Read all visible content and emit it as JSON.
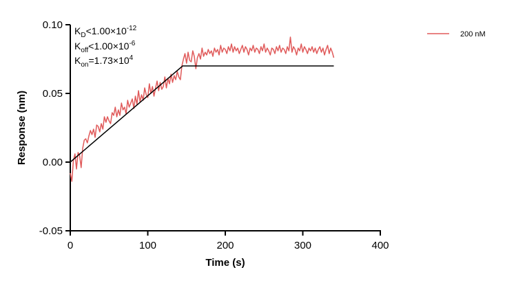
{
  "chart_data": {
    "type": "line",
    "title": "",
    "xlabel": "Time (s)",
    "ylabel": "Response (nm)",
    "xlim": [
      0,
      400
    ],
    "ylim": [
      -0.05,
      0.1
    ],
    "x_ticks": [
      0,
      100,
      200,
      300,
      400
    ],
    "x_tick_labels": [
      "0",
      "100",
      "200",
      "300",
      "400"
    ],
    "y_ticks": [
      -0.05,
      0,
      0.05,
      0.1
    ],
    "y_tick_labels": [
      "-0.05",
      "0.00",
      "0.05",
      "0.10"
    ],
    "grid": false,
    "legend_position": "top-right",
    "annotations": {
      "kd": {
        "label": "K",
        "sub": "D",
        "rel": "<",
        "value": "1.00×10",
        "exp": "-12"
      },
      "koff": {
        "label": "K",
        "sub": "off",
        "rel": "<",
        "value": "1.00×10",
        "exp": "-6"
      },
      "kon": {
        "label": "K",
        "sub": "on",
        "rel": "=",
        "value": "1.73×10",
        "exp": "4"
      }
    },
    "series": [
      {
        "name": "200 nM",
        "color": "#e05a5a",
        "x": [
          0,
          2,
          4,
          6,
          8,
          10,
          12,
          14,
          16,
          18,
          20,
          22,
          24,
          26,
          28,
          30,
          32,
          34,
          36,
          38,
          40,
          42,
          44,
          46,
          48,
          50,
          52,
          54,
          56,
          58,
          60,
          62,
          64,
          66,
          68,
          70,
          72,
          74,
          76,
          78,
          80,
          82,
          84,
          86,
          88,
          90,
          92,
          94,
          96,
          98,
          100,
          102,
          104,
          106,
          108,
          110,
          112,
          114,
          116,
          118,
          120,
          122,
          124,
          126,
          128,
          130,
          132,
          134,
          136,
          138,
          140,
          142,
          144,
          146,
          148,
          150,
          152,
          154,
          156,
          158,
          160,
          162,
          164,
          166,
          168,
          170,
          172,
          174,
          176,
          178,
          180,
          182,
          184,
          186,
          188,
          190,
          192,
          194,
          196,
          198,
          200,
          202,
          204,
          206,
          208,
          210,
          212,
          214,
          216,
          218,
          220,
          222,
          224,
          226,
          228,
          230,
          232,
          234,
          236,
          238,
          240,
          242,
          244,
          246,
          248,
          250,
          252,
          254,
          256,
          258,
          260,
          262,
          264,
          266,
          268,
          270,
          272,
          274,
          276,
          278,
          280,
          282,
          284,
          286,
          288,
          290,
          292,
          294,
          296,
          298,
          300,
          302,
          304,
          306,
          308,
          310,
          312,
          314,
          316,
          318,
          320,
          322,
          324,
          326,
          328,
          330,
          332,
          334,
          336,
          338,
          340
        ],
        "y": [
          -0.008,
          -0.014,
          0.001,
          0.006,
          -0.005,
          0.007,
          0.005,
          -0.004,
          0.01,
          0.016,
          0.017,
          0.014,
          0.019,
          0.023,
          0.02,
          0.024,
          0.018,
          0.027,
          0.026,
          0.022,
          0.028,
          0.024,
          0.033,
          0.029,
          0.033,
          0.03,
          0.028,
          0.036,
          0.034,
          0.04,
          0.033,
          0.038,
          0.034,
          0.043,
          0.038,
          0.04,
          0.035,
          0.045,
          0.04,
          0.043,
          0.046,
          0.039,
          0.048,
          0.042,
          0.052,
          0.044,
          0.049,
          0.045,
          0.054,
          0.049,
          0.047,
          0.057,
          0.05,
          0.055,
          0.048,
          0.054,
          0.059,
          0.052,
          0.058,
          0.053,
          0.055,
          0.062,
          0.054,
          0.061,
          0.057,
          0.064,
          0.058,
          0.063,
          0.06,
          0.066,
          0.062,
          0.06,
          0.07,
          0.075,
          0.079,
          0.072,
          0.08,
          0.074,
          0.073,
          0.081,
          0.077,
          0.068,
          0.076,
          0.079,
          0.075,
          0.083,
          0.077,
          0.08,
          0.078,
          0.082,
          0.079,
          0.081,
          0.077,
          0.083,
          0.08,
          0.082,
          0.078,
          0.085,
          0.08,
          0.083,
          0.082,
          0.079,
          0.084,
          0.081,
          0.086,
          0.08,
          0.084,
          0.081,
          0.083,
          0.079,
          0.082,
          0.085,
          0.08,
          0.084,
          0.082,
          0.078,
          0.083,
          0.081,
          0.085,
          0.08,
          0.083,
          0.082,
          0.079,
          0.084,
          0.081,
          0.086,
          0.08,
          0.083,
          0.081,
          0.078,
          0.083,
          0.082,
          0.079,
          0.084,
          0.081,
          0.085,
          0.08,
          0.083,
          0.082,
          0.079,
          0.084,
          0.081,
          0.091,
          0.08,
          0.084,
          0.082,
          0.078,
          0.083,
          0.081,
          0.086,
          0.08,
          0.084,
          0.082,
          0.079,
          0.083,
          0.081,
          0.084,
          0.08,
          0.083,
          0.079,
          0.082,
          0.084,
          0.08,
          0.083,
          0.078,
          0.082,
          0.085,
          0.079,
          0.083,
          0.08,
          0.076
        ]
      }
    ],
    "fit": {
      "name": "fit",
      "color": "#000000",
      "x": [
        0,
        145,
        340
      ],
      "y": [
        0.0,
        0.07,
        0.07
      ]
    }
  }
}
